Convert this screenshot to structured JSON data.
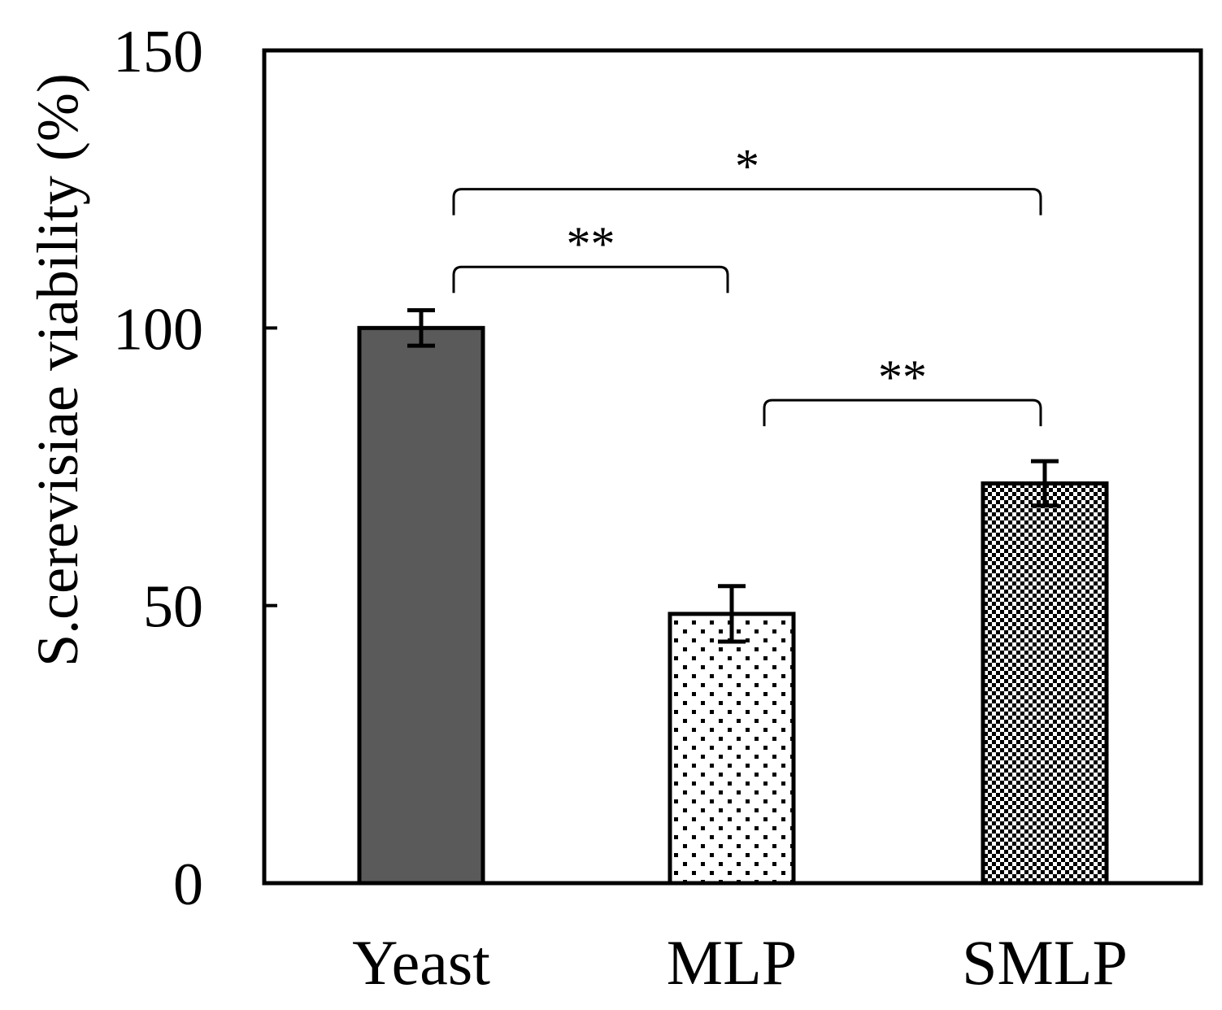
{
  "chart_data": {
    "type": "bar",
    "title": "",
    "xlabel": "",
    "ylabel": "S.cerevisiae viability (%)",
    "ylim": [
      0,
      150
    ],
    "yticks": [
      "0",
      "50",
      "100",
      "150"
    ],
    "categories": [
      "Yeast",
      "MLP",
      "SMLP"
    ],
    "values": [
      100,
      48.5,
      72
    ],
    "errors": [
      3.2,
      5,
      4
    ],
    "fills": [
      "solid-dark-gray",
      "sparse-dots",
      "dense-checker"
    ],
    "colors": {
      "solid": "#5a5a5a",
      "ink": "#000000",
      "background": "#ffffff"
    },
    "significance": [
      {
        "from": 0,
        "to": 2,
        "label": "*",
        "bracket_value": 125
      },
      {
        "from": 0,
        "to": 1,
        "label": "**",
        "bracket_value": 111
      },
      {
        "from": 1,
        "to": 2,
        "label": "**",
        "bracket_value": 87
      }
    ],
    "grid": false,
    "legend": "none"
  }
}
